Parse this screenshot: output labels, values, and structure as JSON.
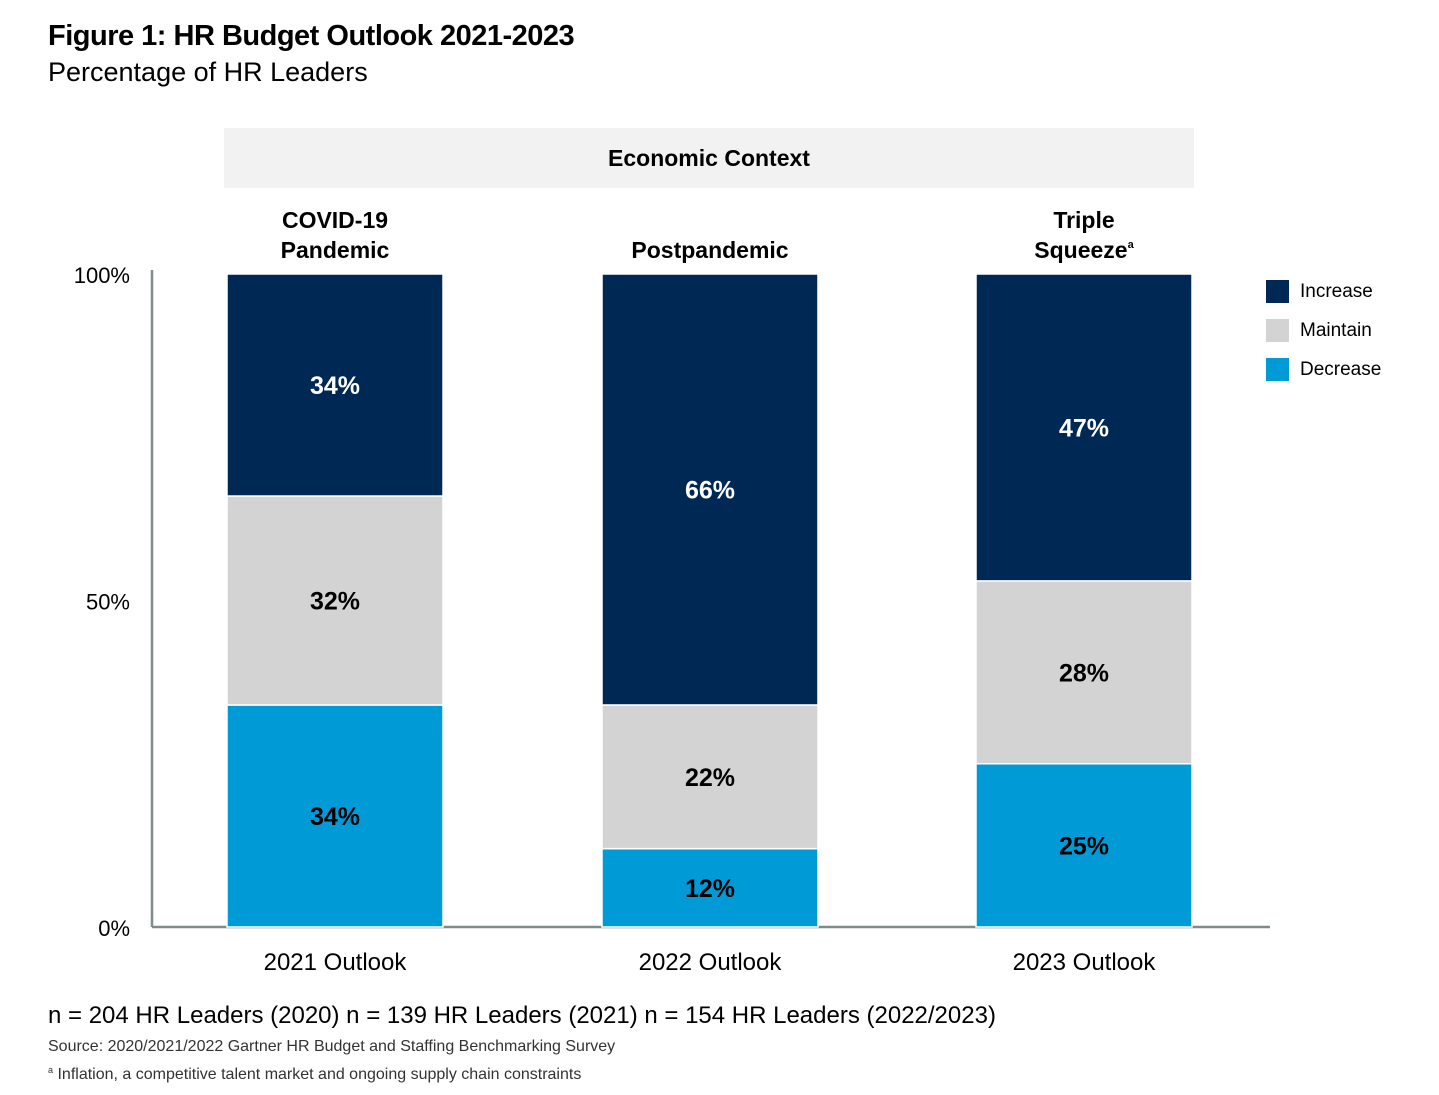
{
  "chart_data": {
    "type": "bar",
    "stacked": true,
    "title": "Figure 1: HR Budget Outlook 2021-2023",
    "subtitle": "Percentage of HR Leaders",
    "context_header": "Economic Context",
    "categories": [
      "2021 Outlook",
      "2022 Outlook",
      "2023 Outlook"
    ],
    "category_contexts": [
      {
        "lines": [
          "COVID-19",
          "Pandemic"
        ],
        "footnote_marker": ""
      },
      {
        "lines": [
          "Postpandemic"
        ],
        "footnote_marker": ""
      },
      {
        "lines": [
          "Triple",
          "Squeeze"
        ],
        "footnote_marker": "a"
      }
    ],
    "series": [
      {
        "name": "Decrease",
        "color": "#009ad7",
        "label_color": "#000000",
        "values": [
          34,
          12,
          25
        ]
      },
      {
        "name": "Maintain",
        "color": "#d3d3d3",
        "label_color": "#000000",
        "values": [
          32,
          22,
          28
        ]
      },
      {
        "name": "Increase",
        "color": "#002855",
        "label_color": "#ffffff",
        "values": [
          34,
          66,
          47
        ]
      }
    ],
    "legend_order": [
      "Increase",
      "Maintain",
      "Decrease"
    ],
    "legend_position": "right",
    "ylim": [
      0,
      100
    ],
    "yticks": [
      0,
      50,
      100
    ],
    "ytick_labels": [
      "0%",
      "50%",
      "100%"
    ],
    "xlabel": "",
    "ylabel": "",
    "grid": false
  },
  "footer": {
    "sample_sizes": "n = 204 HR Leaders (2020) n = 139 HR Leaders (2021) n = 154 HR Leaders (2022/2023)",
    "source": "Source: 2020/2021/2022 Gartner HR Budget and Staffing Benchmarking Survey",
    "footnote_marker": "a",
    "footnote": "Inflation, a competitive talent market and ongoing supply chain constraints"
  }
}
